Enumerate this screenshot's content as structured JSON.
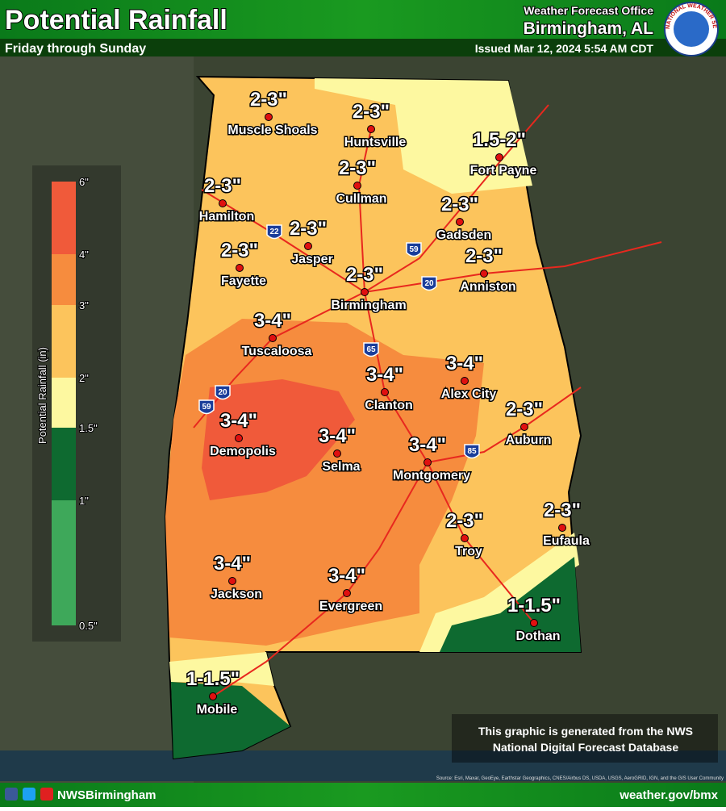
{
  "header": {
    "title": "Potential Rainfall",
    "subtitle": "Friday through Sunday",
    "office": "Weather Forecast Office",
    "location": "Birmingham, AL",
    "issued": "Issued Mar 12, 2024 5:54 AM CDT",
    "logo": "NATIONAL WEATHER SERVICE"
  },
  "legend": {
    "title": "Potential Rainfall (in)",
    "ticks": [
      "6\"",
      "4\"",
      "3\"",
      "2\"",
      "1.5\"",
      "1\"",
      "0.5\""
    ],
    "colors": [
      "#f05a3a",
      "#f68c3e",
      "#fcc45c",
      "#fdf8a0",
      "#0e6a30",
      "#3ea85a"
    ]
  },
  "cities": [
    {
      "name": "Muscle Shoals",
      "amount": "2-3\""
    },
    {
      "name": "Huntsville",
      "amount": "2-3\""
    },
    {
      "name": "Fort Payne",
      "amount": "1.5-2\""
    },
    {
      "name": "Cullman",
      "amount": "2-3\""
    },
    {
      "name": "Hamilton",
      "amount": "2-3\""
    },
    {
      "name": "Gadsden",
      "amount": "2-3\""
    },
    {
      "name": "Jasper",
      "amount": "2-3\""
    },
    {
      "name": "Fayette",
      "amount": "2-3\""
    },
    {
      "name": "Anniston",
      "amount": "2-3\""
    },
    {
      "name": "Birmingham",
      "amount": "2-3\""
    },
    {
      "name": "Tuscaloosa",
      "amount": "3-4\""
    },
    {
      "name": "Alex City",
      "amount": "3-4\""
    },
    {
      "name": "Clanton",
      "amount": "3-4\""
    },
    {
      "name": "Auburn",
      "amount": "2-3\""
    },
    {
      "name": "Demopolis",
      "amount": "3-4\""
    },
    {
      "name": "Selma",
      "amount": "3-4\""
    },
    {
      "name": "Montgomery",
      "amount": "3-4\""
    },
    {
      "name": "Eufaula",
      "amount": "2-3\""
    },
    {
      "name": "Troy",
      "amount": "2-3\""
    },
    {
      "name": "Jackson",
      "amount": "3-4\""
    },
    {
      "name": "Evergreen",
      "amount": "3-4\""
    },
    {
      "name": "Dothan",
      "amount": "1-1.5\""
    },
    {
      "name": "Mobile",
      "amount": "1-1.5\""
    }
  ],
  "interstates": [
    "22",
    "59",
    "20",
    "65",
    "20",
    "59",
    "85"
  ],
  "footer": {
    "note": [
      "This graphic is generated from the NWS",
      "National Digital Forecast Database"
    ],
    "handle": "NWSBirmingham",
    "url": "weather.gov/bmx",
    "source": "Source: Esri, Maxar, GeoEye, Earthstar Geographics, CNES/Airbus DS, USDA, USGS, AeroGRID, IGN, and the GIS User Community"
  }
}
